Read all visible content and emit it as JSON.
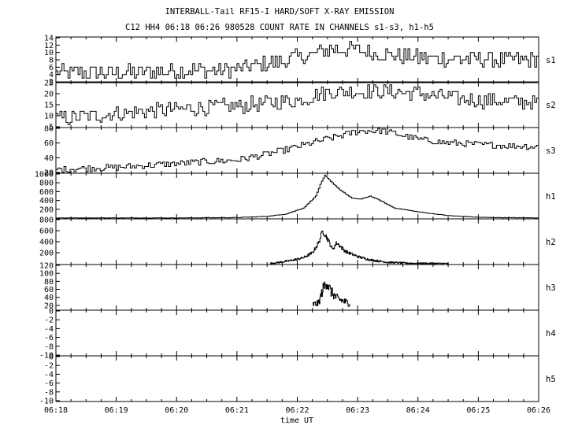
{
  "title": "INTERBALL-Tail RF15-I HARD/SOFT X-RAY EMISSION",
  "subtitle": "C12 HH4 06:18 06:26 980528  COUNT RATE IN CHANNELS s1-s3, h1-h5",
  "chart_data": {
    "type": "line",
    "title": "INTERBALL-Tail RF15-I HARD/SOFT X-RAY EMISSION",
    "subtitle": "C12 HH4 06:18 06:26 980528  COUNT RATE IN CHANNELS s1-s3, h1-h5",
    "xlabel": "time UT",
    "x_ticks": [
      "06:18",
      "06:19",
      "06:20",
      "06:21",
      "06:22",
      "06:23",
      "06:24",
      "06:25",
      "06:26"
    ],
    "x_range_minutes": [
      0,
      8
    ],
    "panels": [
      {
        "name": "s1",
        "ylim": [
          2,
          14
        ],
        "yticks": [
          2,
          4,
          6,
          8,
          10,
          12,
          14
        ],
        "trend": [
          [
            0,
            4.5
          ],
          [
            1,
            4.5
          ],
          [
            2,
            5
          ],
          [
            3,
            5.5
          ],
          [
            4,
            8.5
          ],
          [
            4.6,
            11
          ],
          [
            5,
            10.5
          ],
          [
            5.5,
            9.5
          ],
          [
            6,
            8.5
          ],
          [
            7,
            8
          ],
          [
            8,
            8
          ]
        ],
        "noise": 2.3
      },
      {
        "name": "s2",
        "ylim": [
          5,
          25
        ],
        "yticks": [
          5,
          10,
          15,
          20,
          25
        ],
        "trend": [
          [
            0,
            8.5
          ],
          [
            1,
            11
          ],
          [
            2,
            13
          ],
          [
            3,
            14.5
          ],
          [
            4,
            17
          ],
          [
            4.5,
            21
          ],
          [
            5,
            21
          ],
          [
            5.5,
            21
          ],
          [
            6,
            20
          ],
          [
            6.6,
            18
          ],
          [
            7,
            17
          ],
          [
            8,
            16
          ]
        ],
        "noise": 3.5
      },
      {
        "name": "s3",
        "ylim": [
          20,
          80
        ],
        "yticks": [
          20,
          40,
          60,
          80
        ],
        "trend": [
          [
            0,
            24
          ],
          [
            1,
            27
          ],
          [
            2,
            32
          ],
          [
            3,
            37
          ],
          [
            3.5,
            45
          ],
          [
            4,
            55
          ],
          [
            4.5,
            66
          ],
          [
            5,
            76
          ],
          [
            5.4,
            77
          ],
          [
            6,
            65
          ],
          [
            6.5,
            60
          ],
          [
            7,
            58
          ],
          [
            8,
            55
          ]
        ],
        "noise": 4.5
      },
      {
        "name": "h1",
        "ylim": [
          0,
          1000
        ],
        "yticks": [
          200,
          400,
          600,
          800,
          1000
        ],
        "trend": [
          [
            0,
            3
          ],
          [
            2,
            3
          ],
          [
            3,
            12
          ],
          [
            3.5,
            40
          ],
          [
            3.8,
            90
          ],
          [
            4.1,
            230
          ],
          [
            4.3,
            500
          ],
          [
            4.38,
            780
          ],
          [
            4.45,
            970
          ],
          [
            4.55,
            830
          ],
          [
            4.7,
            640
          ],
          [
            4.9,
            450
          ],
          [
            5.05,
            430
          ],
          [
            5.2,
            500
          ],
          [
            5.35,
            410
          ],
          [
            5.6,
            230
          ],
          [
            6,
            140
          ],
          [
            6.5,
            55
          ],
          [
            7,
            18
          ],
          [
            7.5,
            8
          ],
          [
            8,
            5
          ]
        ],
        "noise": 5
      },
      {
        "name": "h2",
        "ylim": [
          0,
          800
        ],
        "yticks": [
          200,
          400,
          600,
          800
        ],
        "trend": [
          [
            3.55,
            5
          ],
          [
            3.7,
            25
          ],
          [
            3.9,
            60
          ],
          [
            4.1,
            110
          ],
          [
            4.25,
            200
          ],
          [
            4.35,
            380
          ],
          [
            4.42,
            600
          ],
          [
            4.5,
            450
          ],
          [
            4.58,
            260
          ],
          [
            4.65,
            380
          ],
          [
            4.8,
            220
          ],
          [
            5,
            130
          ],
          [
            5.2,
            70
          ],
          [
            5.5,
            25
          ],
          [
            5.9,
            8
          ],
          [
            6.5,
            3
          ]
        ],
        "range": [
          3.55,
          6.5
        ],
        "noise": 45
      },
      {
        "name": "h3",
        "ylim": [
          10,
          120
        ],
        "yticks": [
          20,
          40,
          60,
          80,
          100,
          120
        ],
        "trend": [
          [
            4.25,
            22
          ],
          [
            4.35,
            25
          ],
          [
            4.42,
            60
          ],
          [
            4.48,
            80
          ],
          [
            4.55,
            55
          ],
          [
            4.65,
            38
          ],
          [
            4.8,
            28
          ],
          [
            4.88,
            25
          ]
        ],
        "range": [
          4.25,
          4.88
        ],
        "noise": 14
      },
      {
        "name": "h4",
        "ylim": [
          -10,
          0
        ],
        "yticks": [
          -10,
          -8,
          -6,
          -4,
          -2,
          0
        ]
      },
      {
        "name": "h5",
        "ylim": [
          -10,
          0
        ],
        "yticks": [
          -10,
          -8,
          -6,
          -4,
          -2,
          0
        ]
      }
    ]
  }
}
